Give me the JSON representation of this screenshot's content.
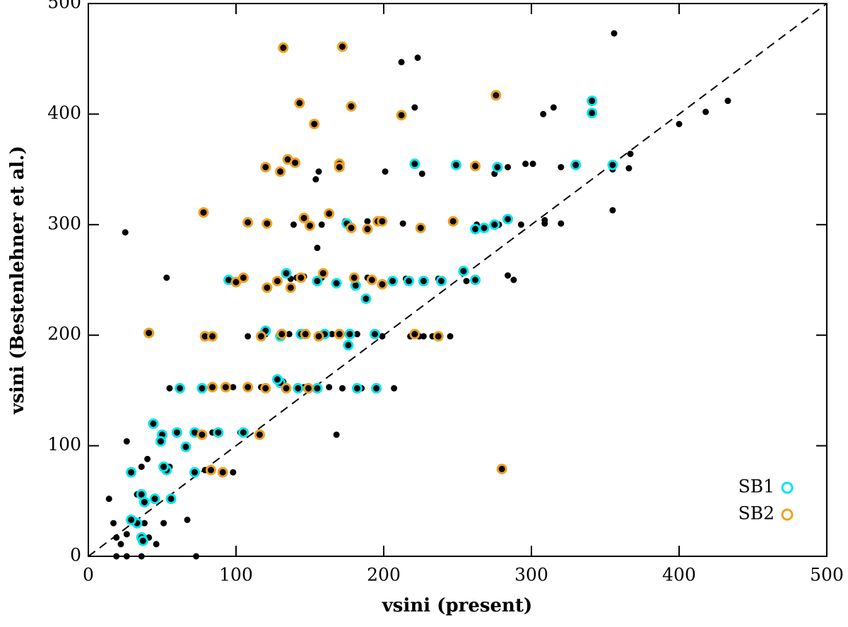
{
  "chart_data": {
    "type": "scatter",
    "xlabel": "vsini (present)",
    "ylabel": "vsini (Bestenlehner et al.)",
    "xlim": [
      0,
      500
    ],
    "ylim": [
      0,
      500
    ],
    "xticks": [
      0,
      100,
      200,
      300,
      400,
      500
    ],
    "yticks": [
      0,
      100,
      200,
      300,
      400,
      500
    ],
    "legend": "lower right",
    "series": [
      {
        "color": "#000000",
        "x": [
          356,
          212,
          223,
          221,
          308,
          315,
          400,
          418,
          433,
          366,
          367,
          355,
          355,
          25,
          156,
          154,
          155,
          201,
          226,
          275,
          284,
          296,
          301,
          320,
          278,
          293,
          309,
          309,
          320,
          263,
          168,
          284,
          288,
          53,
          141,
          224,
          245,
          227,
          233,
          207,
          185,
          172,
          55,
          78,
          14,
          17,
          19,
          22,
          26,
          31,
          33,
          38,
          41,
          46,
          51,
          67,
          36,
          55,
          79,
          98,
          26,
          40,
          73,
          19,
          26,
          36,
          137,
          146,
          158,
          189,
          215,
          237,
          256,
          108,
          120,
          136,
          165,
          182,
          199,
          218,
          98,
          117,
          132,
          146,
          163,
          60,
          84,
          103,
          139,
          158,
          174,
          189,
          213
        ],
        "y": [
          473,
          447,
          451,
          406,
          400,
          406,
          391,
          402,
          412,
          351,
          364,
          313,
          350,
          293,
          348,
          341,
          279,
          348,
          346,
          346,
          352,
          355,
          355,
          352,
          300,
          300,
          301,
          304,
          301,
          300,
          110,
          254,
          250,
          252,
          252,
          199,
          199,
          199,
          199,
          152,
          152,
          152,
          152,
          152,
          52,
          30,
          17,
          11,
          20,
          33,
          56,
          30,
          17,
          11,
          30,
          33,
          81,
          81,
          78,
          76,
          104,
          88,
          0,
          0,
          0,
          0,
          251,
          253,
          252,
          252,
          251,
          251,
          249,
          199,
          201,
          201,
          201,
          201,
          199,
          199,
          153,
          153,
          158,
          153,
          153,
          110,
          112,
          112,
          300,
          300,
          303,
          303,
          301
        ]
      },
      {
        "name": "SB1",
        "color": "#00e5ee",
        "x": [
          341,
          341,
          355,
          330,
          277,
          249,
          221,
          284,
          275,
          262,
          268,
          175,
          95,
          134,
          155,
          168,
          181,
          206,
          217,
          227,
          239,
          262,
          254,
          188,
          41,
          120,
          130,
          144,
          160,
          177,
          194,
          176,
          62,
          77,
          130,
          142,
          155,
          182,
          195,
          128,
          44,
          50,
          60,
          72,
          88,
          105,
          49,
          66,
          29,
          53,
          72,
          51,
          36,
          38,
          45,
          56,
          36,
          37,
          33,
          29
        ],
        "y": [
          412,
          401,
          354,
          354,
          352,
          354,
          355,
          305,
          300,
          296,
          297,
          301,
          250,
          256,
          249,
          247,
          245,
          249,
          249,
          249,
          249,
          250,
          258,
          233,
          202,
          204,
          199,
          201,
          201,
          201,
          201,
          191,
          152,
          152,
          157,
          152,
          152,
          152,
          152,
          160,
          120,
          110,
          112,
          112,
          112,
          112,
          104,
          99,
          76,
          78,
          76,
          81,
          56,
          49,
          52,
          52,
          17,
          14,
          30,
          33
        ]
      },
      {
        "name": "SB2",
        "color": "#f0a020",
        "x": [
          132,
          172,
          143,
          178,
          153,
          212,
          276,
          120,
          135,
          130,
          140,
          170,
          170,
          262,
          78,
          108,
          121,
          146,
          150,
          163,
          178,
          189,
          196,
          199,
          225,
          247,
          100,
          105,
          121,
          128,
          137,
          144,
          159,
          180,
          192,
          199,
          41,
          79,
          84,
          117,
          131,
          147,
          156,
          170,
          221,
          237,
          84,
          93,
          108,
          120,
          134,
          149,
          77,
          116,
          83,
          91,
          280
        ],
        "y": [
          460,
          461,
          410,
          407,
          391,
          399,
          417,
          352,
          359,
          348,
          356,
          355,
          352,
          353,
          311,
          302,
          301,
          306,
          299,
          310,
          297,
          296,
          303,
          303,
          297,
          303,
          248,
          252,
          243,
          249,
          243,
          252,
          256,
          252,
          250,
          246,
          202,
          199,
          199,
          199,
          201,
          201,
          199,
          201,
          201,
          199,
          153,
          153,
          153,
          152,
          152,
          152,
          110,
          110,
          78,
          76,
          79
        ]
      }
    ]
  }
}
